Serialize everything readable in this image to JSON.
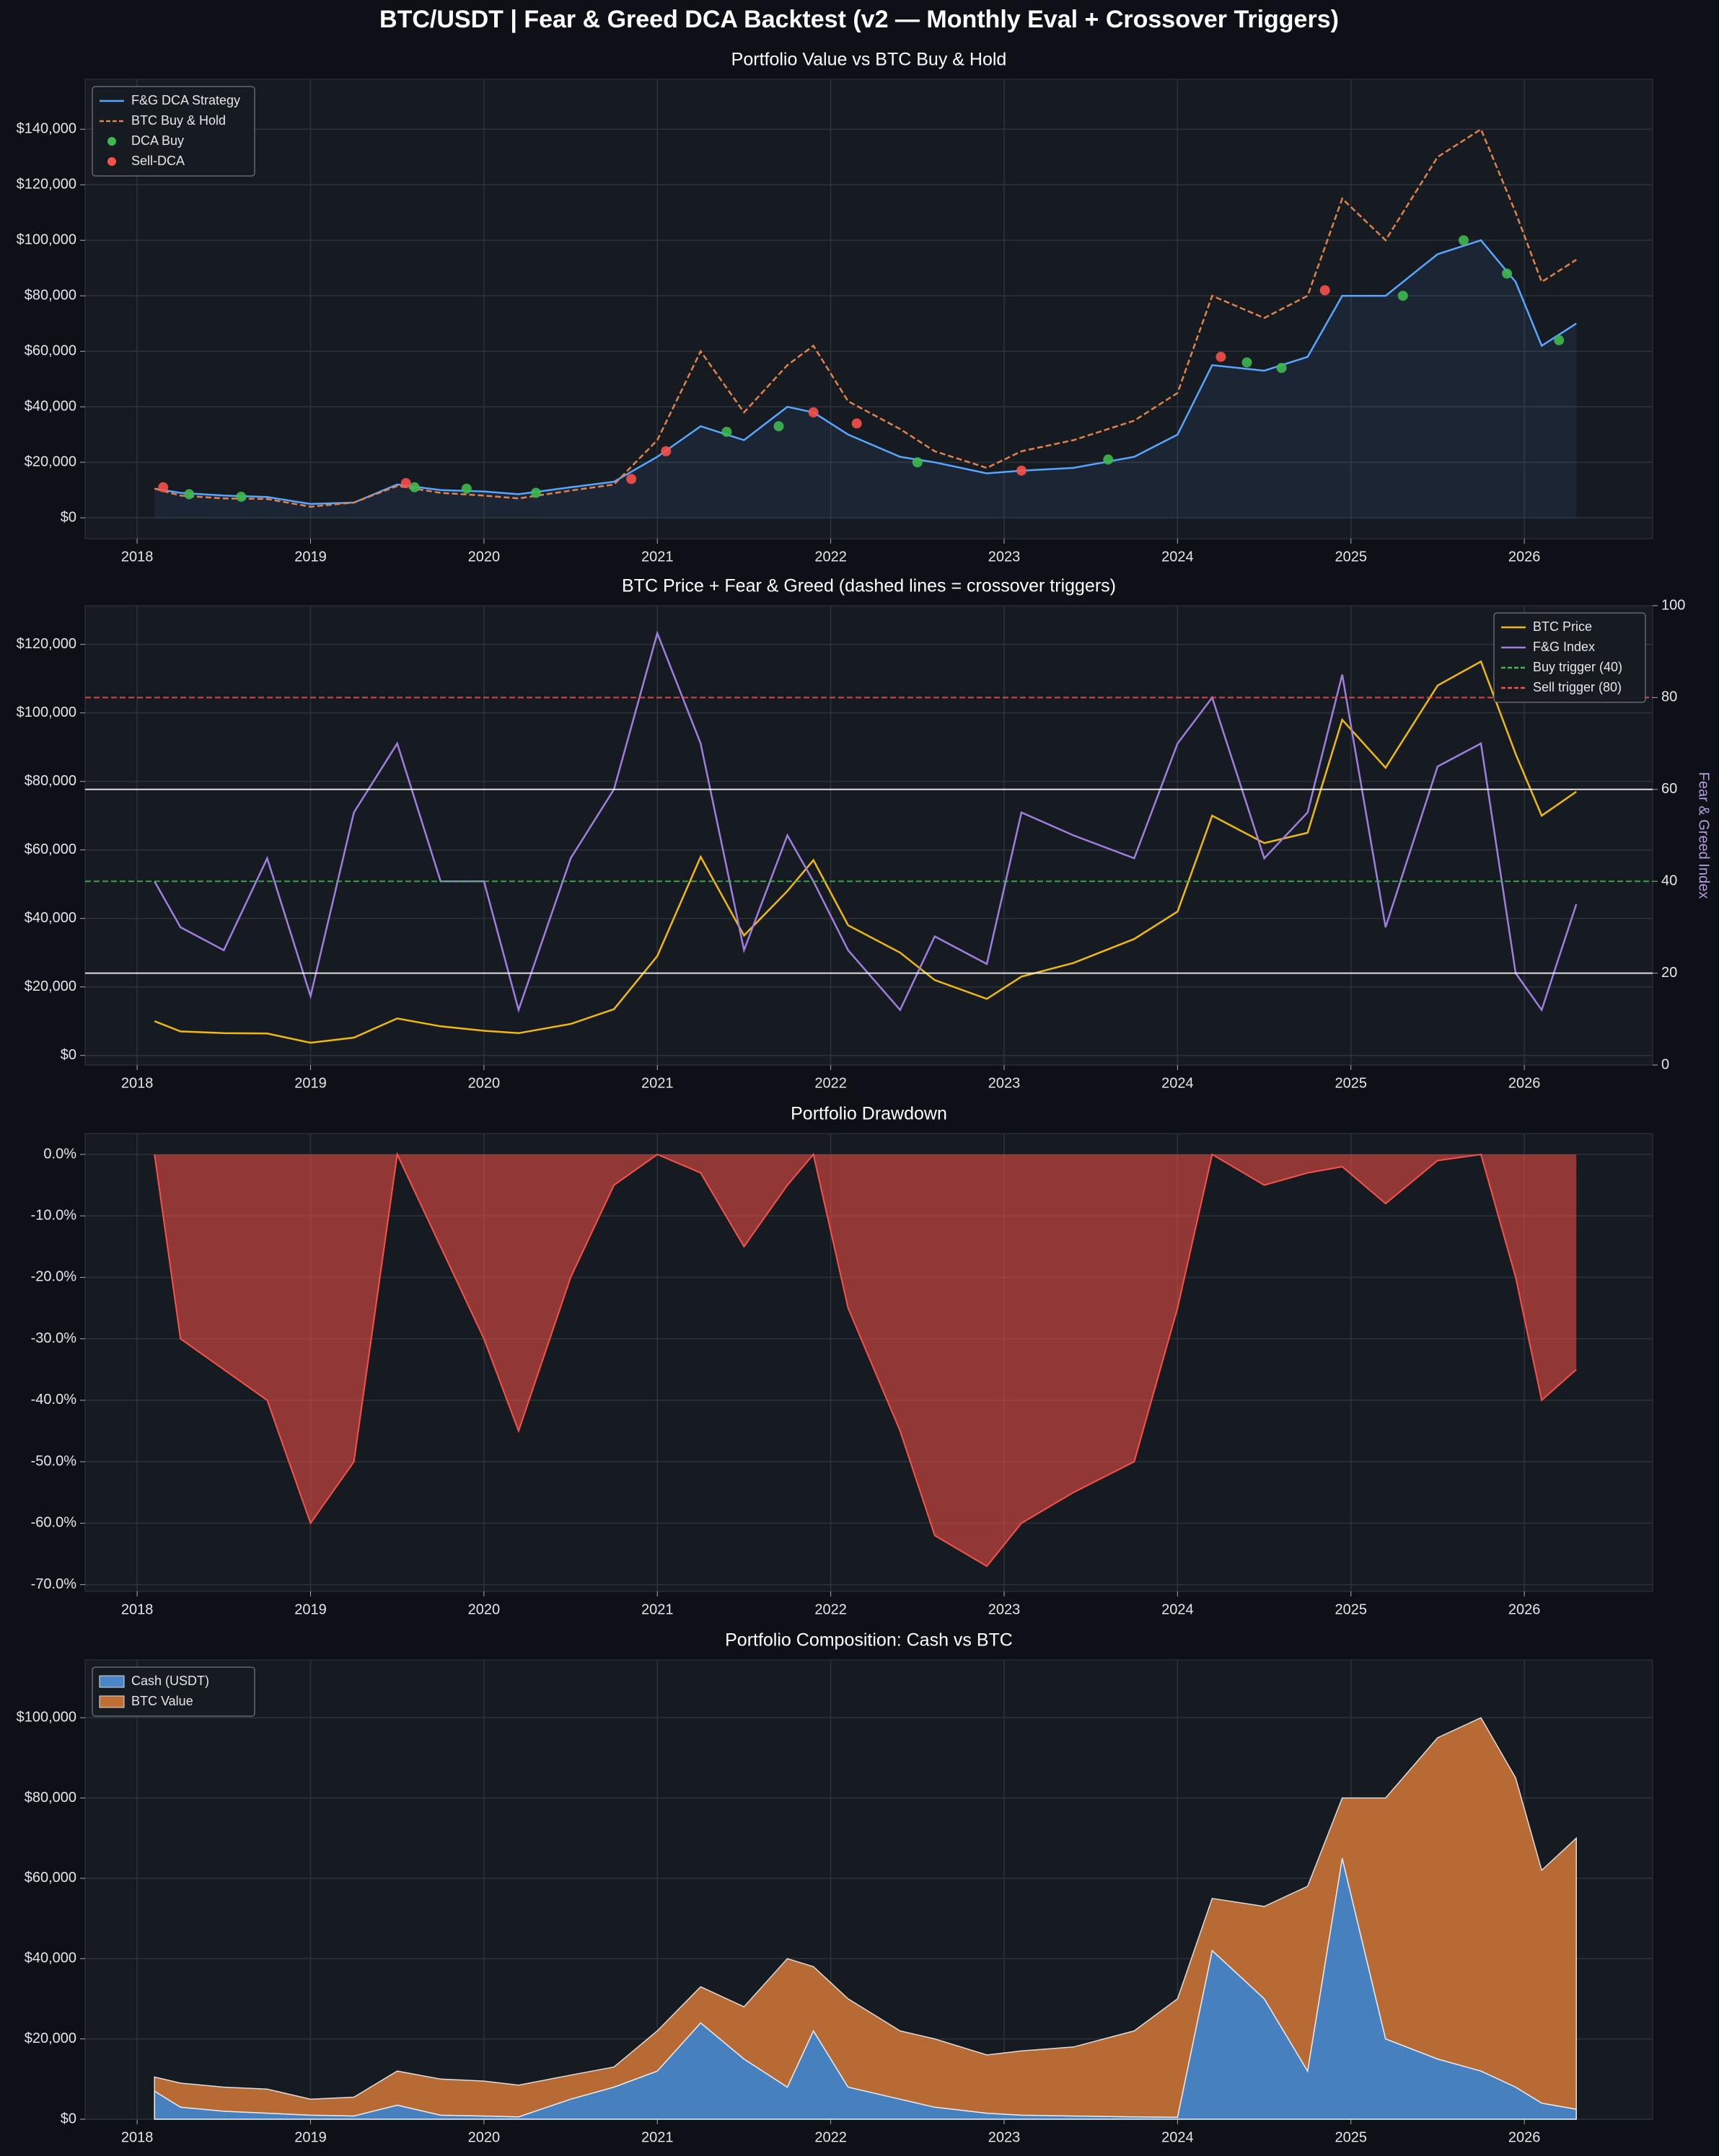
{
  "title": "BTC/USDT  |  Fear & Greed DCA Backtest  (v2 — Monthly Eval + Crossover Triggers)",
  "chart_data": [
    {
      "type": "line",
      "title": "Portfolio Value vs BTC Buy & Hold",
      "legend": "upper left",
      "grid": true,
      "x": [
        2018.1,
        2018.25,
        2018.5,
        2018.75,
        2019.0,
        2019.25,
        2019.5,
        2019.75,
        2020.0,
        2020.2,
        2020.5,
        2020.75,
        2021.0,
        2021.25,
        2021.5,
        2021.75,
        2021.9,
        2022.1,
        2022.4,
        2022.6,
        2022.9,
        2023.1,
        2023.4,
        2023.75,
        2024.0,
        2024.2,
        2024.5,
        2024.75,
        2024.95,
        2025.2,
        2025.5,
        2025.75,
        2025.95,
        2026.1,
        2026.3
      ],
      "xlim": [
        2017.7,
        2026.74
      ],
      "xticks": [
        2018,
        2019,
        2020,
        2021,
        2022,
        2023,
        2024,
        2025,
        2026
      ],
      "ylim": [
        -7500,
        158000
      ],
      "yticks": [
        {
          "value": 0,
          "label": "$0"
        },
        {
          "value": 20000,
          "label": "$20,000"
        },
        {
          "value": 40000,
          "label": "$40,000"
        },
        {
          "value": 60000,
          "label": "$60,000"
        },
        {
          "value": 80000,
          "label": "$80,000"
        },
        {
          "value": 100000,
          "label": "$100,000"
        },
        {
          "value": 120000,
          "label": "$120,000"
        },
        {
          "value": 140000,
          "label": "$140,000"
        }
      ],
      "series": [
        {
          "name": "F&G DCA Strategy",
          "color": "#58a6ff",
          "fill": true,
          "values": [
            10500,
            9000,
            8000,
            7500,
            5000,
            5500,
            12000,
            10000,
            9500,
            8500,
            11000,
            13000,
            22000,
            33000,
            28000,
            40000,
            38000,
            30000,
            22000,
            20000,
            16000,
            17000,
            18000,
            22000,
            30000,
            55000,
            53000,
            58000,
            80000,
            80000,
            95000,
            100000,
            85000,
            62000,
            70000
          ]
        },
        {
          "name": "BTC Buy & Hold",
          "color": "#e0824a",
          "line_style": "dashed",
          "values": [
            10500,
            8000,
            7000,
            6800,
            4000,
            5500,
            11500,
            9000,
            8000,
            7000,
            9800,
            12000,
            28000,
            60000,
            38000,
            55000,
            62000,
            42000,
            32000,
            24000,
            18000,
            24000,
            28000,
            35000,
            45000,
            80000,
            72000,
            80000,
            115000,
            100000,
            130000,
            140000,
            110000,
            85000,
            93000
          ]
        },
        {
          "name": "DCA Buy",
          "color": "#3fb950",
          "type": "scatter",
          "x": [
            2018.3,
            2018.6,
            2019.6,
            2019.9,
            2020.3,
            2021.4,
            2021.7,
            2022.5,
            2023.6,
            2024.4,
            2024.6,
            2025.3,
            2025.65,
            2025.9,
            2026.2
          ],
          "values": [
            8500,
            7600,
            11000,
            10500,
            9000,
            31000,
            33000,
            20000,
            21000,
            56000,
            54000,
            80000,
            100000,
            88000,
            64000
          ]
        },
        {
          "name": "Sell-DCA",
          "color": "#f85149",
          "type": "scatter",
          "x": [
            2018.15,
            2019.55,
            2020.85,
            2021.05,
            2021.9,
            2022.15,
            2023.1,
            2024.25,
            2024.85
          ],
          "values": [
            11000,
            12500,
            14000,
            24000,
            38000,
            34000,
            17000,
            58000,
            82000
          ]
        }
      ]
    },
    {
      "type": "line",
      "title": "BTC Price + Fear & Greed  (dashed lines = crossover triggers)",
      "legend": "upper right",
      "grid": true,
      "x": [
        2018.1,
        2018.25,
        2018.5,
        2018.75,
        2019.0,
        2019.25,
        2019.5,
        2019.75,
        2020.0,
        2020.2,
        2020.5,
        2020.75,
        2021.0,
        2021.25,
        2021.5,
        2021.75,
        2021.9,
        2022.1,
        2022.4,
        2022.6,
        2022.9,
        2023.1,
        2023.4,
        2023.75,
        2024.0,
        2024.2,
        2024.5,
        2024.75,
        2024.95,
        2025.2,
        2025.5,
        2025.75,
        2025.95,
        2026.1,
        2026.3
      ],
      "xlim": [
        2017.7,
        2026.74
      ],
      "xticks": [
        2018,
        2019,
        2020,
        2021,
        2022,
        2023,
        2024,
        2025,
        2026
      ],
      "ylim": [
        -2800,
        131300
      ],
      "yticks": [
        {
          "value": 0,
          "label": "$0"
        },
        {
          "value": 20000,
          "label": "$20,000"
        },
        {
          "value": 40000,
          "label": "$40,000"
        },
        {
          "value": 60000,
          "label": "$60,000"
        },
        {
          "value": 80000,
          "label": "$80,000"
        },
        {
          "value": 100000,
          "label": "$100,000"
        },
        {
          "value": 120000,
          "label": "$120,000"
        }
      ],
      "y2label": "Fear & Greed Index",
      "y2lim": [
        0,
        100
      ],
      "y2ticks": [
        0,
        20,
        40,
        60,
        80,
        100
      ],
      "series": [
        {
          "name": "BTC Price",
          "color": "#f0b90b",
          "values": [
            10000,
            7000,
            6500,
            6400,
            3700,
            5200,
            10800,
            8500,
            7200,
            6500,
            9200,
            13500,
            29000,
            58000,
            35000,
            48000,
            57000,
            38000,
            30000,
            22000,
            16500,
            23000,
            27000,
            34000,
            42000,
            70000,
            62000,
            65000,
            98000,
            84000,
            108000,
            115000,
            88000,
            70000,
            77000
          ]
        },
        {
          "name": "F&G Index",
          "color": "#a07ee0",
          "axis": "y2",
          "values": [
            40,
            30,
            25,
            45,
            15,
            55,
            70,
            40,
            40,
            12,
            45,
            60,
            94,
            70,
            25,
            50,
            40,
            25,
            12,
            28,
            22,
            55,
            50,
            45,
            70,
            80,
            45,
            55,
            85,
            30,
            65,
            70,
            20,
            12,
            35
          ]
        }
      ],
      "hlines": [
        {
          "name": "Buy trigger (40)",
          "value": 40,
          "color": "#3fb950",
          "axis": "y2",
          "line_style": "dashed"
        },
        {
          "name": "Sell trigger (80)",
          "value": 80,
          "color": "#f85149",
          "axis": "y2",
          "line_style": "dashed"
        },
        {
          "value": 20,
          "color": "#ffffff",
          "axis": "y2"
        },
        {
          "value": 60,
          "color": "#ffffff",
          "axis": "y2"
        }
      ]
    },
    {
      "type": "area",
      "title": "Portfolio Drawdown",
      "grid": true,
      "x": [
        2018.1,
        2018.25,
        2018.5,
        2018.75,
        2019.0,
        2019.25,
        2019.5,
        2019.75,
        2020.0,
        2020.2,
        2020.5,
        2020.75,
        2021.0,
        2021.25,
        2021.5,
        2021.75,
        2021.9,
        2022.1,
        2022.4,
        2022.6,
        2022.9,
        2023.1,
        2023.4,
        2023.75,
        2024.0,
        2024.2,
        2024.5,
        2024.75,
        2024.95,
        2025.2,
        2025.5,
        2025.75,
        2025.95,
        2026.1,
        2026.3
      ],
      "xlim": [
        2017.7,
        2026.74
      ],
      "xticks": [
        2018,
        2019,
        2020,
        2021,
        2022,
        2023,
        2024,
        2025,
        2026
      ],
      "ylim": [
        -71.1,
        3.4
      ],
      "yticks": [
        {
          "value": 0,
          "label": "0.0%"
        },
        {
          "value": -10,
          "label": "-10.0%"
        },
        {
          "value": -20,
          "label": "-20.0%"
        },
        {
          "value": -30,
          "label": "-30.0%"
        },
        {
          "value": -40,
          "label": "-40.0%"
        },
        {
          "value": -50,
          "label": "-50.0%"
        },
        {
          "value": -60,
          "label": "-60.0%"
        },
        {
          "value": -70,
          "label": "-70.0%"
        }
      ],
      "series": [
        {
          "color": "#f85149",
          "values": [
            0,
            -30,
            -35,
            -40,
            -60,
            -50,
            0,
            -15,
            -30,
            -45,
            -20,
            -5,
            0,
            -3,
            -15,
            -5,
            0,
            -25,
            -45,
            -62,
            -67,
            -60,
            -55,
            -50,
            -25,
            0,
            -5,
            -3,
            -2,
            -8,
            -1,
            0,
            -20,
            -40,
            -35
          ]
        }
      ]
    },
    {
      "type": "stacked_area",
      "title": "Portfolio Composition: Cash vs BTC",
      "legend": "upper left",
      "grid": true,
      "x": [
        2018.1,
        2018.25,
        2018.5,
        2018.75,
        2019.0,
        2019.25,
        2019.5,
        2019.75,
        2020.0,
        2020.2,
        2020.5,
        2020.75,
        2021.0,
        2021.25,
        2021.5,
        2021.75,
        2021.9,
        2022.1,
        2022.4,
        2022.6,
        2022.9,
        2023.1,
        2023.4,
        2023.75,
        2024.0,
        2024.2,
        2024.5,
        2024.75,
        2024.95,
        2025.2,
        2025.5,
        2025.75,
        2025.95,
        2026.1,
        2026.3
      ],
      "xlim": [
        2017.7,
        2026.74
      ],
      "xticks": [
        2018,
        2019,
        2020,
        2021,
        2022,
        2023,
        2024,
        2025,
        2026
      ],
      "ylim": [
        0,
        114400
      ],
      "yticks": [
        {
          "value": 0,
          "label": "$0"
        },
        {
          "value": 20000,
          "label": "$20,000"
        },
        {
          "value": 40000,
          "label": "$40,000"
        },
        {
          "value": 60000,
          "label": "$60,000"
        },
        {
          "value": 80000,
          "label": "$80,000"
        },
        {
          "value": 100000,
          "label": "$100,000"
        }
      ],
      "series": [
        {
          "name": "Cash (USDT)",
          "color": "#4a86c8",
          "values": [
            7000,
            3000,
            2000,
            1500,
            1000,
            800,
            3500,
            1000,
            800,
            600,
            5000,
            8000,
            12000,
            24000,
            15000,
            8000,
            22000,
            8000,
            5000,
            3000,
            1500,
            1000,
            800,
            600,
            500,
            42000,
            30000,
            12000,
            65000,
            20000,
            15000,
            12000,
            8000,
            4000,
            2500
          ]
        },
        {
          "name": "BTC Value",
          "color": "#c06f34",
          "values": [
            3500,
            6000,
            6000,
            6000,
            4000,
            4700,
            8500,
            9000,
            8700,
            7900,
            6000,
            5000,
            10000,
            9000,
            13000,
            32000,
            16000,
            22000,
            17000,
            17000,
            14500,
            16000,
            17200,
            21400,
            29500,
            13000,
            23000,
            46000,
            15000,
            60000,
            80000,
            88000,
            77000,
            58000,
            67500
          ]
        }
      ]
    }
  ]
}
